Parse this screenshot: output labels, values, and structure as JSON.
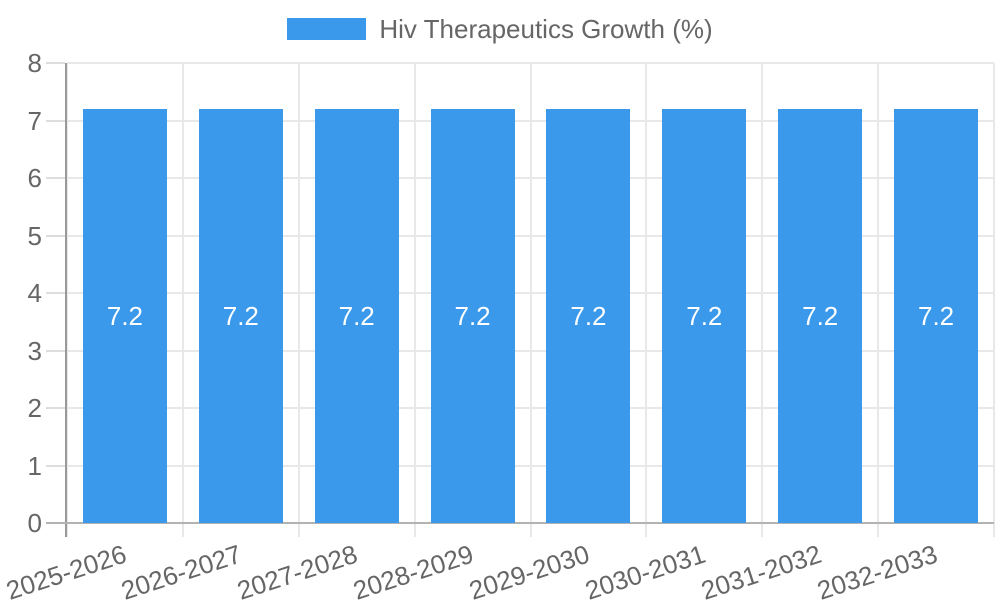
{
  "chart_data": {
    "type": "bar",
    "title": "Hiv Therapeutics Growth (%)",
    "xlabel": "",
    "ylabel": "",
    "categories": [
      "2025-2026",
      "2026-2027",
      "2027-2028",
      "2028-2029",
      "2029-2030",
      "2030-2031",
      "2031-2032",
      "2032-2033"
    ],
    "series": [
      {
        "name": "Hiv Therapeutics Growth (%)",
        "values": [
          7.2,
          7.2,
          7.2,
          7.2,
          7.2,
          7.2,
          7.2,
          7.2
        ]
      }
    ],
    "value_labels": [
      "7.2",
      "7.2",
      "7.2",
      "7.2",
      "7.2",
      "7.2",
      "7.2",
      "7.2"
    ],
    "y_ticks": [
      "0",
      "1",
      "2",
      "3",
      "4",
      "5",
      "6",
      "7",
      "8"
    ],
    "ylim": [
      0,
      8
    ],
    "grid": true,
    "legend_position": "top",
    "colors": {
      "bar": "#3B99EC",
      "value_label": "#FFFFFF",
      "axis_text": "#666666",
      "gridline": "#E8E8E8",
      "minor_tick": "#DDDDDD",
      "y_axis_line": "#999999",
      "x_axis_line": "#B3B3B3"
    }
  }
}
